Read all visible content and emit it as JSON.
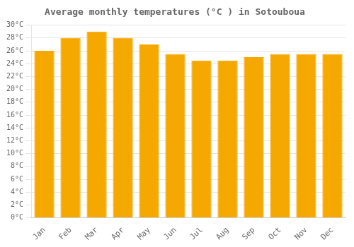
{
  "chart_data": {
    "type": "bar",
    "title": "Average monthly temperatures (°C ) in Sotouboua",
    "categories": [
      "Jan",
      "Feb",
      "Mar",
      "Apr",
      "May",
      "Jun",
      "Jul",
      "Aug",
      "Sep",
      "Oct",
      "Nov",
      "Dec"
    ],
    "values": [
      26.0,
      28.0,
      29.0,
      28.0,
      27.0,
      25.5,
      24.5,
      24.5,
      25.0,
      25.5,
      25.5,
      25.5
    ],
    "color": "#F5A800",
    "ylim": [
      0,
      30
    ],
    "yticks": [
      {
        "value": 0,
        "label": "0°C"
      },
      {
        "value": 2,
        "label": "2°C"
      },
      {
        "value": 4,
        "label": "4°C"
      },
      {
        "value": 6,
        "label": "6°C"
      },
      {
        "value": 8,
        "label": "8°C"
      },
      {
        "value": 10,
        "label": "10°C"
      },
      {
        "value": 12,
        "label": "12°C"
      },
      {
        "value": 14,
        "label": "14°C"
      },
      {
        "value": 16,
        "label": "16°C"
      },
      {
        "value": 18,
        "label": "18°C"
      },
      {
        "value": 20,
        "label": "20°C"
      },
      {
        "value": 22,
        "label": "22°C"
      },
      {
        "value": 24,
        "label": "24°C"
      },
      {
        "value": 26,
        "label": "26°C"
      },
      {
        "value": 28,
        "label": "28°C"
      },
      {
        "value": 30,
        "label": "30°C"
      }
    ],
    "grid": true
  }
}
